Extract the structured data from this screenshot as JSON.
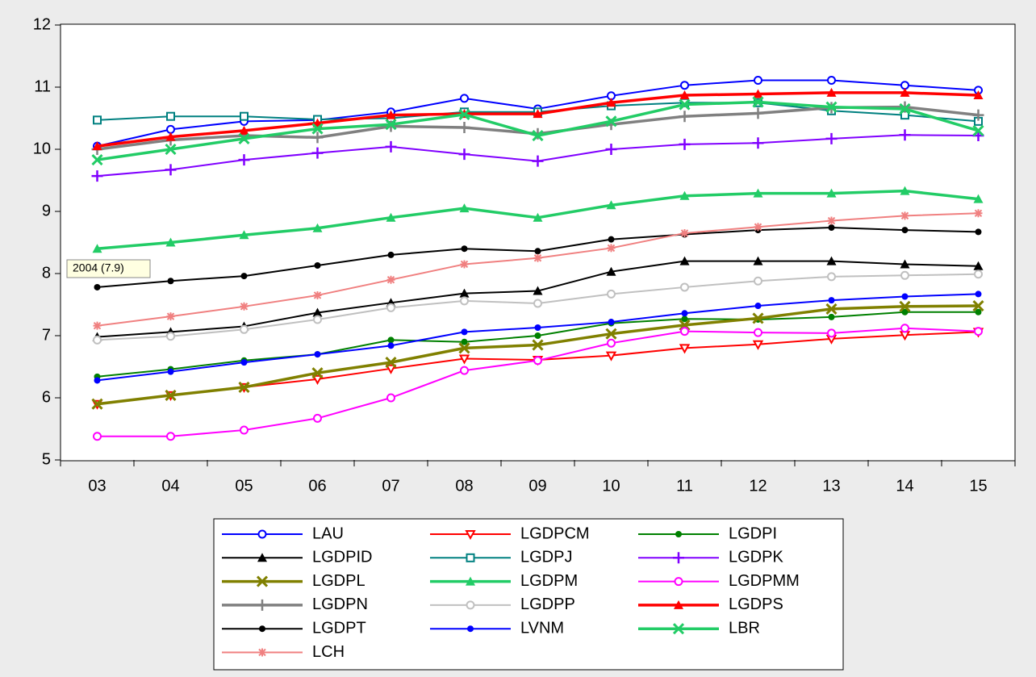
{
  "chart_data": {
    "type": "line",
    "categories": [
      "03",
      "04",
      "05",
      "06",
      "07",
      "08",
      "09",
      "10",
      "11",
      "12",
      "13",
      "14",
      "15"
    ],
    "ylim": [
      5,
      12
    ],
    "yticks": [
      5,
      6,
      7,
      8,
      9,
      10,
      11,
      12
    ],
    "annotation": "2004  (7.9)",
    "legend": "bottom",
    "series": [
      {
        "name": "LAU",
        "color": "#0000ff",
        "marker": "circle-open",
        "width": 2,
        "values": [
          10.05,
          10.32,
          10.45,
          10.47,
          10.6,
          10.82,
          10.65,
          10.86,
          11.03,
          11.11,
          11.11,
          11.03,
          10.95
        ]
      },
      {
        "name": "LGDPCM",
        "color": "#ff0000",
        "marker": "triangle-down-open",
        "width": 2,
        "values": [
          5.9,
          6.04,
          6.17,
          6.3,
          6.47,
          6.63,
          6.61,
          6.68,
          6.8,
          6.86,
          6.95,
          7.01,
          7.06
        ]
      },
      {
        "name": "LGDPI",
        "color": "#008000",
        "marker": "dot",
        "width": 2,
        "values": [
          6.34,
          6.46,
          6.6,
          6.7,
          6.93,
          6.9,
          7.0,
          7.2,
          7.27,
          7.26,
          7.3,
          7.38,
          7.38
        ]
      },
      {
        "name": "LGDPID",
        "color": "#000000",
        "marker": "triangle",
        "width": 2,
        "values": [
          6.98,
          7.06,
          7.15,
          7.37,
          7.53,
          7.68,
          7.72,
          8.03,
          8.2,
          8.2,
          8.2,
          8.15,
          8.12
        ]
      },
      {
        "name": "LGDPJ",
        "color": "#008080",
        "marker": "square-open",
        "width": 2,
        "values": [
          10.47,
          10.53,
          10.53,
          10.48,
          10.5,
          10.6,
          10.6,
          10.7,
          10.75,
          10.75,
          10.62,
          10.55,
          10.45
        ]
      },
      {
        "name": "LGDPK",
        "color": "#8000ff",
        "marker": "plus",
        "width": 2,
        "values": [
          9.57,
          9.67,
          9.83,
          9.94,
          10.04,
          9.92,
          9.81,
          10.0,
          10.08,
          10.1,
          10.17,
          10.23,
          10.22
        ]
      },
      {
        "name": "LGDPL",
        "color": "#808000",
        "marker": "x",
        "width": 3.5,
        "values": [
          5.9,
          6.04,
          6.17,
          6.4,
          6.57,
          6.8,
          6.85,
          7.03,
          7.17,
          7.28,
          7.43,
          7.47,
          7.48
        ]
      },
      {
        "name": "LGDPM",
        "color": "#22cc66",
        "marker": "triangle",
        "width": 3.5,
        "values": [
          8.4,
          8.5,
          8.62,
          8.73,
          8.9,
          9.05,
          8.9,
          9.1,
          9.25,
          9.29,
          9.29,
          9.33,
          9.2
        ]
      },
      {
        "name": "LGDPMM",
        "color": "#ff00ff",
        "marker": "circle-open",
        "width": 2,
        "values": [
          5.38,
          5.38,
          5.48,
          5.67,
          6.0,
          6.44,
          6.6,
          6.88,
          7.07,
          7.05,
          7.04,
          7.12,
          7.07
        ]
      },
      {
        "name": "LGDPN",
        "color": "#808080",
        "marker": "plus",
        "width": 3.5,
        "values": [
          10.0,
          10.15,
          10.22,
          10.19,
          10.37,
          10.35,
          10.25,
          10.4,
          10.53,
          10.58,
          10.67,
          10.68,
          10.55
        ]
      },
      {
        "name": "LGDPP",
        "color": "#c0c0c0",
        "marker": "circle-open",
        "width": 2,
        "values": [
          6.93,
          6.99,
          7.1,
          7.26,
          7.45,
          7.56,
          7.52,
          7.67,
          7.78,
          7.88,
          7.95,
          7.97,
          7.99
        ]
      },
      {
        "name": "LGDPS",
        "color": "#ff0000",
        "marker": "triangle",
        "width": 3.5,
        "values": [
          10.05,
          10.2,
          10.3,
          10.42,
          10.55,
          10.57,
          10.57,
          10.75,
          10.87,
          10.89,
          10.91,
          10.91,
          10.87
        ]
      },
      {
        "name": "LGDPT",
        "color": "#000000",
        "marker": "dot",
        "width": 2,
        "values": [
          7.78,
          7.88,
          7.96,
          8.13,
          8.3,
          8.4,
          8.36,
          8.55,
          8.63,
          8.7,
          8.74,
          8.7,
          8.67
        ]
      },
      {
        "name": "LVNM",
        "color": "#0000ff",
        "marker": "dot",
        "width": 2,
        "values": [
          6.28,
          6.42,
          6.57,
          6.7,
          6.84,
          7.06,
          7.13,
          7.22,
          7.36,
          7.48,
          7.57,
          7.63,
          7.67
        ]
      },
      {
        "name": "LBR",
        "color": "#22cc66",
        "marker": "x",
        "width": 3.5,
        "values": [
          9.83,
          10.0,
          10.17,
          10.33,
          10.4,
          10.56,
          10.22,
          10.45,
          10.72,
          10.76,
          10.68,
          10.65,
          10.3
        ]
      },
      {
        "name": "LCH",
        "color": "#f08080",
        "marker": "star",
        "width": 2,
        "values": [
          7.16,
          7.31,
          7.47,
          7.65,
          7.9,
          8.15,
          8.25,
          8.41,
          8.65,
          8.75,
          8.85,
          8.93,
          8.97
        ]
      }
    ]
  }
}
